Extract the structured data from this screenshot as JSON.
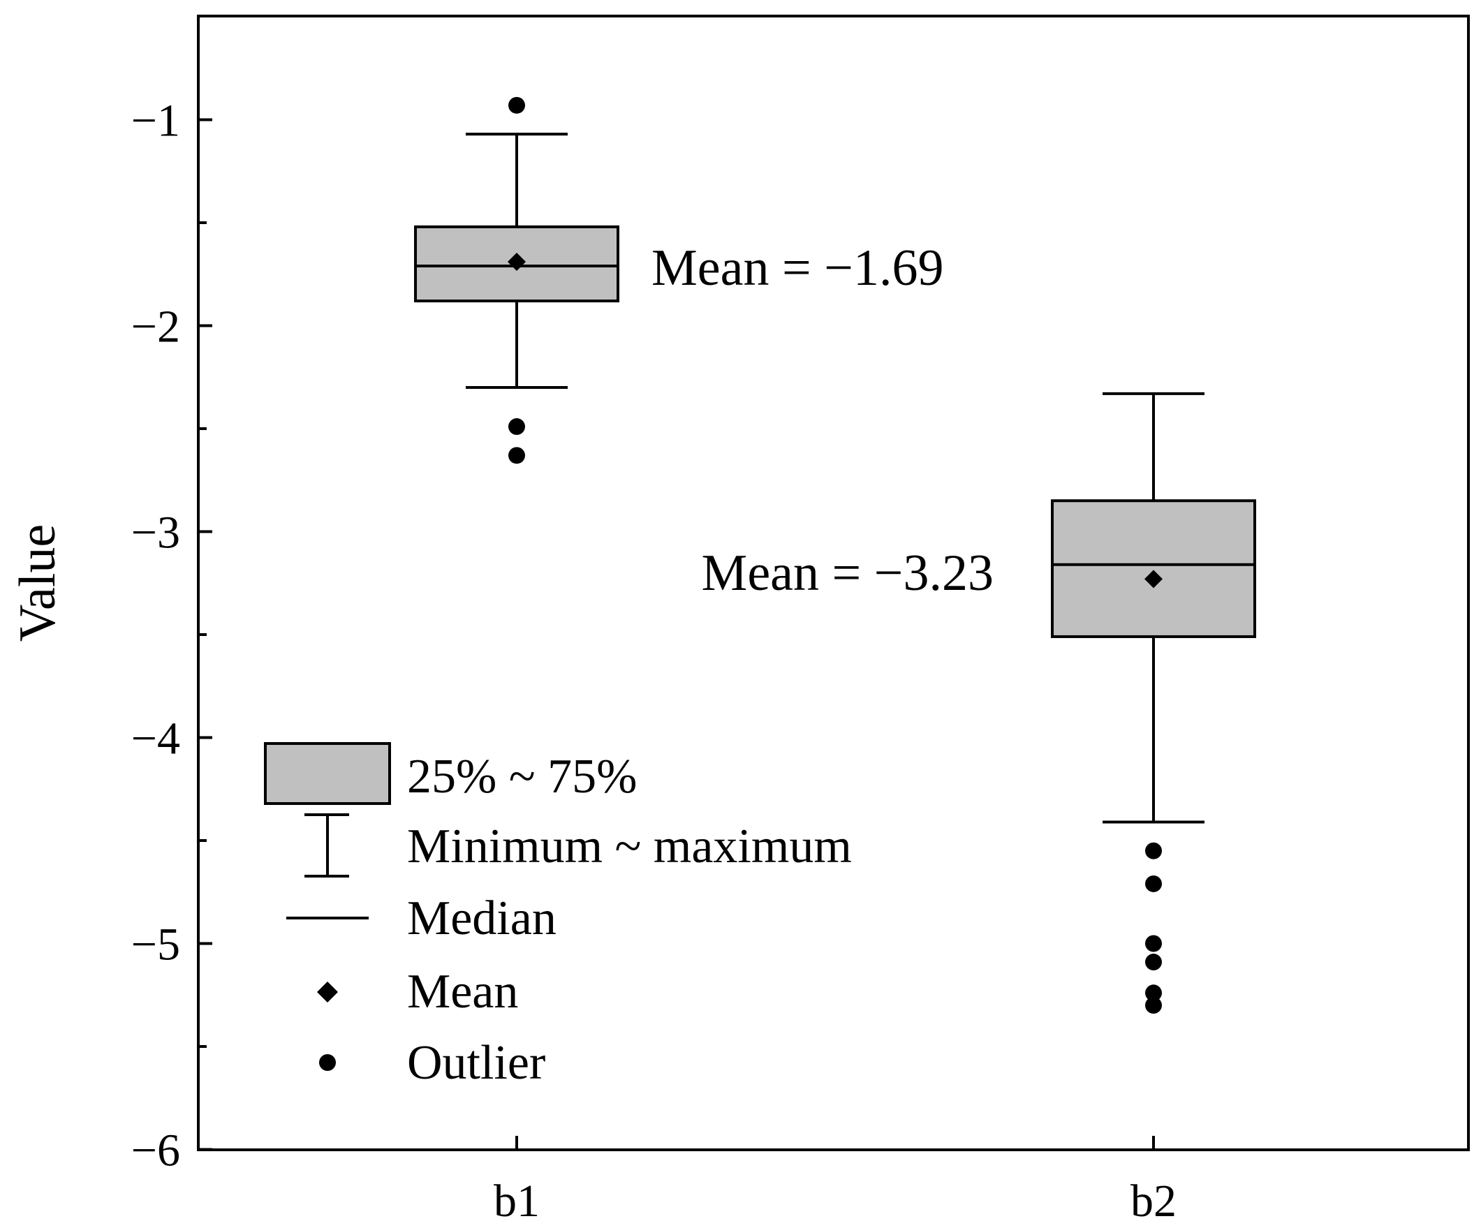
{
  "chart_data": {
    "type": "box",
    "title": "",
    "xlabel": "",
    "ylabel": "Value",
    "ylim": [
      -6,
      -0.5
    ],
    "yticks": [
      -1,
      -2,
      -3,
      -4,
      -5,
      -6
    ],
    "ytick_labels": [
      "−1",
      "−2",
      "−3",
      "−4",
      "−5",
      "−6"
    ],
    "categories": [
      "b1",
      "b2"
    ],
    "boxes": [
      {
        "name": "b1",
        "whisker_max": -1.07,
        "q3": -1.52,
        "median": -1.71,
        "mean": -1.69,
        "q1": -1.88,
        "whisker_min": -2.3,
        "outliers": [
          -0.93,
          -2.49,
          -2.63
        ],
        "mean_label": "Mean = −1.69"
      },
      {
        "name": "b2",
        "whisker_max": -2.33,
        "q3": -2.85,
        "median": -3.16,
        "mean": -3.23,
        "q1": -3.51,
        "whisker_min": -4.41,
        "outliers": [
          -4.55,
          -4.71,
          -5.0,
          -5.09,
          -5.24,
          -5.3
        ],
        "mean_label": "Mean = −3.23"
      }
    ],
    "legend": {
      "placement": "bottom-left",
      "items": [
        {
          "icon": "box-icon",
          "label": "25% ~ 75%"
        },
        {
          "icon": "whisker-icon",
          "label": "Minimum ~ maximum"
        },
        {
          "icon": "median-line-icon",
          "label": "Median"
        },
        {
          "icon": "diamond-icon",
          "label": "Mean"
        },
        {
          "icon": "dot-icon",
          "label": "Outlier"
        }
      ]
    },
    "colors": {
      "box_fill": "#c0c0c0",
      "stroke": "#000000"
    }
  }
}
